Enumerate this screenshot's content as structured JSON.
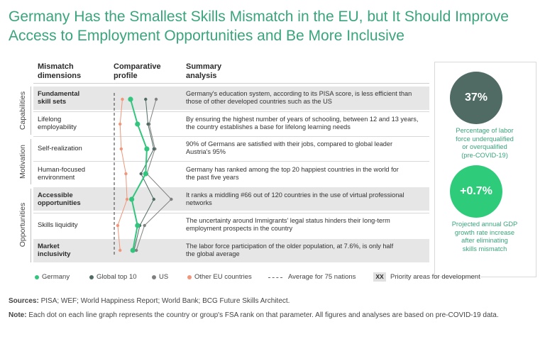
{
  "title": "Germany Has the Smallest Skills Mismatch in the EU, but It Should Improve Access to Employment Opportunities and Be More Inclusive",
  "headers": {
    "dimensions": [
      "Mismatch",
      "dimensions"
    ],
    "profile": [
      "Comparative",
      "profile"
    ],
    "analysis": [
      "Summary",
      "analysis"
    ]
  },
  "categories": [
    "Capabilities",
    "Motivation",
    "Opportunities"
  ],
  "rows": [
    {
      "dimension": [
        "Fundamental",
        "skill sets"
      ],
      "priority": true,
      "analysis": [
        "Germany's education system, according to its PISA score, is less efficient than",
        "those of other developed countries such as the US"
      ]
    },
    {
      "dimension": [
        "Lifelong",
        "employability"
      ],
      "priority": false,
      "analysis": [
        "By ensuring the highest number of years of schooling, between 12 and 13 years,",
        "the country establishes a base for lifelong learning needs"
      ]
    },
    {
      "dimension": [
        "Self-realization"
      ],
      "priority": false,
      "analysis": [
        "90% of Germans are satisfied with their jobs, compared to global leader",
        "Austria's 95%"
      ]
    },
    {
      "dimension": [
        "Human-focused",
        "environment"
      ],
      "priority": false,
      "analysis": [
        "Germany has ranked among the top 20 happiest countries in the world for",
        "the past five years"
      ]
    },
    {
      "dimension": [
        "Accessible",
        "opportunities"
      ],
      "priority": true,
      "analysis": [
        "It ranks a middling #66 out of 120 countries in the use of virtual professional",
        "networks"
      ]
    },
    {
      "dimension": [
        "Skills liquidity"
      ],
      "priority": false,
      "analysis": [
        "The uncertainty around Immigrants' legal status hinders their long-term",
        "employment prospects in the country"
      ]
    },
    {
      "dimension": [
        "Market",
        "inclusivity"
      ],
      "priority": true,
      "analysis": [
        "The labor force participation of the older population, at 7.6%, is only half",
        "the global average"
      ]
    }
  ],
  "chart_data": {
    "type": "line",
    "orientation": "vertical-profile",
    "categories": [
      "Fundamental skill sets",
      "Lifelong employability",
      "Self-realization",
      "Human-focused environment",
      "Accessible opportunities",
      "Skills liquidity",
      "Market inclusivity"
    ],
    "xlim": [
      0,
      100
    ],
    "reference_line": {
      "name": "Average for 75 nations",
      "value": 0
    },
    "series": [
      {
        "name": "Germany",
        "color": "#33c47e",
        "values": [
          28,
          40,
          56,
          54,
          30,
          40,
          32
        ]
      },
      {
        "name": "Global top 10",
        "color": "#4f6b63",
        "values": [
          54,
          58,
          68,
          46,
          68,
          44,
          34
        ]
      },
      {
        "name": "US",
        "color": "#808080",
        "values": [
          72,
          60,
          70,
          56,
          98,
          52,
          38
        ]
      },
      {
        "name": "Other EU countries",
        "color": "#f0967a",
        "values": [
          14,
          10,
          12,
          20,
          22,
          6,
          10
        ]
      }
    ]
  },
  "stats": [
    {
      "value": "37%",
      "color": "#4f6b63",
      "text": [
        "Percentage of labor",
        "force underqualified",
        "or overqualified",
        "(pre-COVID-19)"
      ]
    },
    {
      "value": "+0.7%",
      "color": "#2ecc7a",
      "text": [
        "Projected annual GDP",
        "growth rate increase",
        "after eliminating",
        "skills mismatch"
      ]
    }
  ],
  "legend": {
    "germany": "Germany",
    "global_top10": "Global top 10",
    "us": "US",
    "other_eu": "Other EU countries",
    "average": "Average for 75 nations",
    "xx": "XX",
    "priority": "Priority areas for development"
  },
  "footer": {
    "sources_label": "Sources:",
    "sources_text": "PISA; WEF; World Happiness Report; World Bank; BCG Future Skills Architect.",
    "note_label": "Note:",
    "note_text": "Each dot on each line graph represents the country or group's FSA rank on that parameter. All figures and analyses are based on pre-COVID-19 data."
  }
}
